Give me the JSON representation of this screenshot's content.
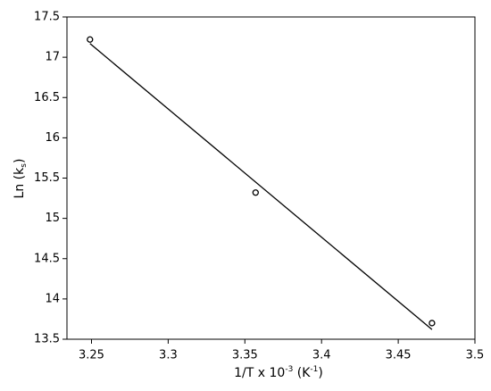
{
  "chart_data": {
    "type": "scatter",
    "x_label": [
      "1/T x 10",
      "-3",
      " (K",
      "-1",
      ")"
    ],
    "y_label": [
      "Ln (k",
      "s",
      ")"
    ],
    "series": [
      {
        "kind": "points",
        "color": "#000000",
        "x": [
          3.249,
          3.357,
          3.472
        ],
        "values": [
          17.22,
          15.32,
          13.7
        ]
      },
      {
        "kind": "line",
        "color": "#000000",
        "x": [
          3.249,
          3.472
        ],
        "values": [
          17.17,
          13.62
        ]
      }
    ],
    "xlim": [
      3.234,
      3.5
    ],
    "ylim": [
      13.5,
      17.5
    ],
    "xticks": [
      3.25,
      3.3,
      3.35,
      3.4,
      3.45,
      3.5
    ],
    "yticks": [
      13.5,
      14,
      14.5,
      15,
      15.5,
      16,
      16.5,
      17,
      17.5
    ]
  }
}
